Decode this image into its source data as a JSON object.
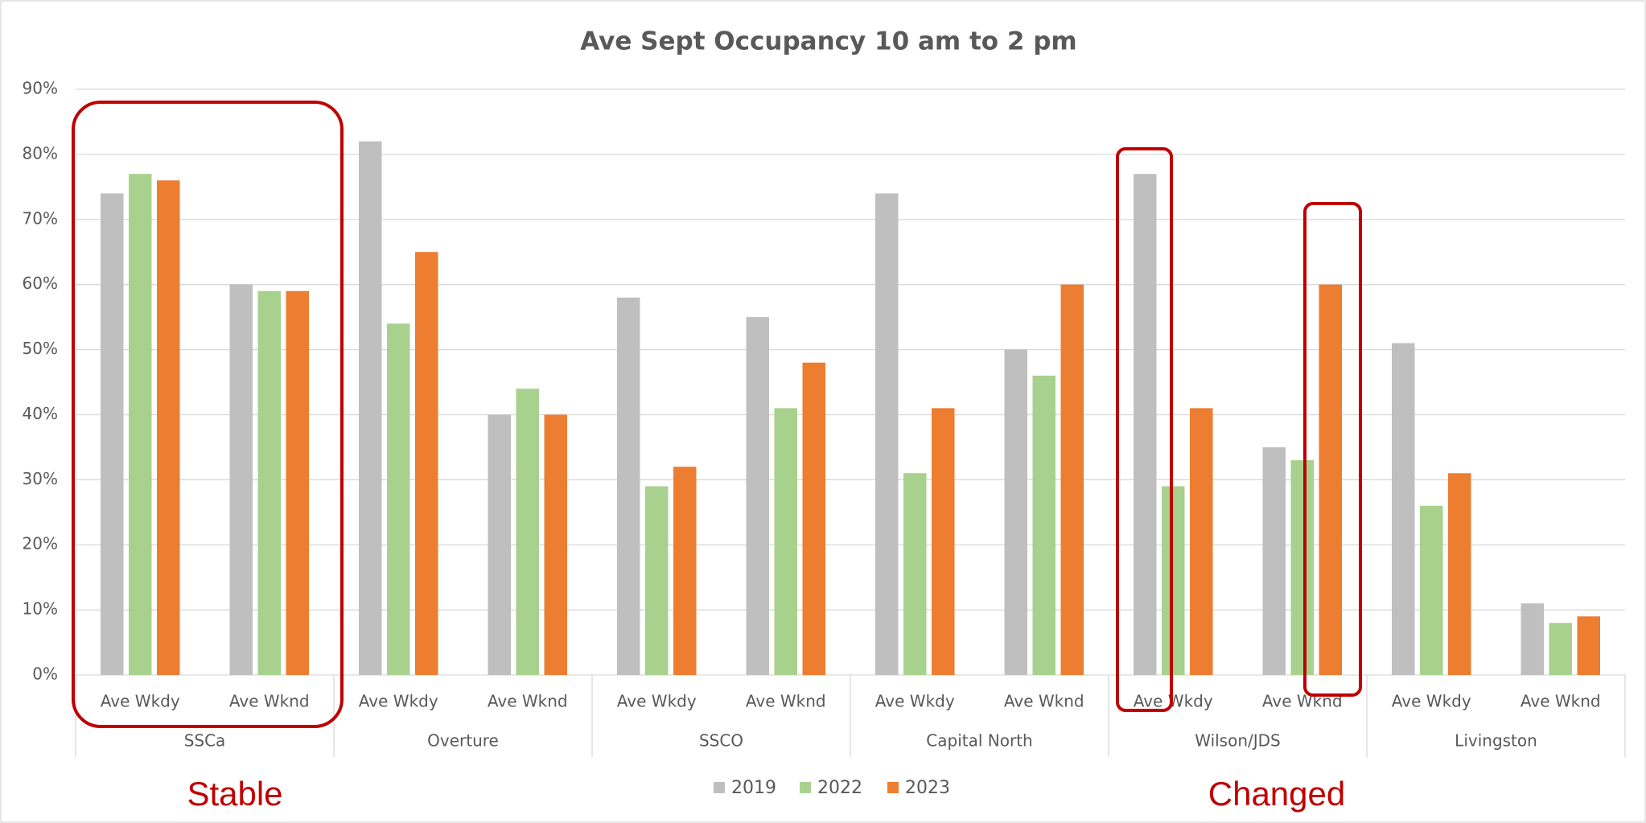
{
  "chart_data": {
    "type": "bar",
    "title": "Ave Sept Occupancy 10 am to 2 pm",
    "categories": [
      "Ave Wkdy",
      "Ave Wknd",
      "Ave Wkdy",
      "Ave Wknd",
      "Ave Wkdy",
      "Ave Wknd",
      "Ave Wkdy",
      "Ave Wknd",
      "Ave Wkdy",
      "Ave Wknd",
      "Ave Wkdy",
      "Ave Wknd"
    ],
    "groups": [
      "SSCa",
      "Overture",
      "SSCO",
      "Capital North",
      "Wilson/JDS",
      "Livingston"
    ],
    "series": [
      {
        "name": "2019",
        "color": "#bfbfbf",
        "values": [
          74,
          60,
          82,
          40,
          58,
          55,
          74,
          50,
          77,
          35,
          51,
          11
        ]
      },
      {
        "name": "2022",
        "color": "#a9d18e",
        "values": [
          77,
          59,
          54,
          44,
          29,
          41,
          31,
          46,
          29,
          33,
          26,
          8
        ]
      },
      {
        "name": "2023",
        "color": "#ed7d31",
        "values": [
          76,
          59,
          65,
          40,
          32,
          48,
          41,
          60,
          41,
          60,
          31,
          9
        ]
      }
    ],
    "ylim": [
      0,
      90
    ],
    "yticks": [
      {
        "value": 0,
        "label": "0%"
      },
      {
        "value": 10,
        "label": "10%"
      },
      {
        "value": 20,
        "label": "20%"
      },
      {
        "value": 30,
        "label": "30%"
      },
      {
        "value": 40,
        "label": "40%"
      },
      {
        "value": 50,
        "label": "50%"
      },
      {
        "value": 60,
        "label": "60%"
      },
      {
        "value": 70,
        "label": "70%"
      },
      {
        "value": 80,
        "label": "80%"
      },
      {
        "value": 90,
        "label": "90%"
      }
    ],
    "grid": true,
    "legend": "bottom",
    "annotations": [
      "Stable",
      "Changed"
    ]
  }
}
